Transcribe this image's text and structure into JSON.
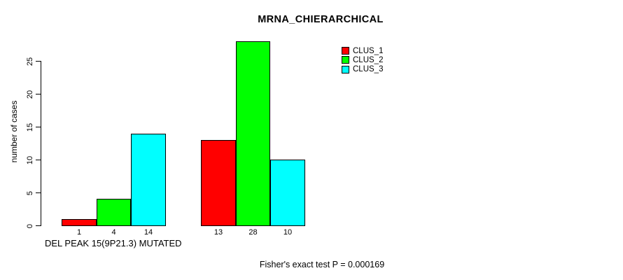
{
  "chart_data": {
    "type": "bar",
    "title": "MRNA_CHIERARCHICAL",
    "ylabel": "number of cases",
    "xlabel": "DEL PEAK 15(9P21.3) MUTATED",
    "annotation": "Fisher's exact test P = 0.000169",
    "ylim": [
      0,
      25
    ],
    "yticks": [
      0,
      5,
      10,
      15,
      20,
      25
    ],
    "grid": false,
    "legend_position": "top-right",
    "group_count": 2,
    "bar_value_labels_shown": true,
    "bar_border_color": "#000000",
    "background_color": "#ffffff",
    "series": [
      {
        "name": "CLUS_1",
        "color": "#ff0000",
        "values": [
          1,
          13
        ]
      },
      {
        "name": "CLUS_2",
        "color": "#00ff00",
        "values": [
          4,
          28
        ]
      },
      {
        "name": "CLUS_3",
        "color": "#00ffff",
        "values": [
          14,
          10
        ]
      }
    ]
  }
}
